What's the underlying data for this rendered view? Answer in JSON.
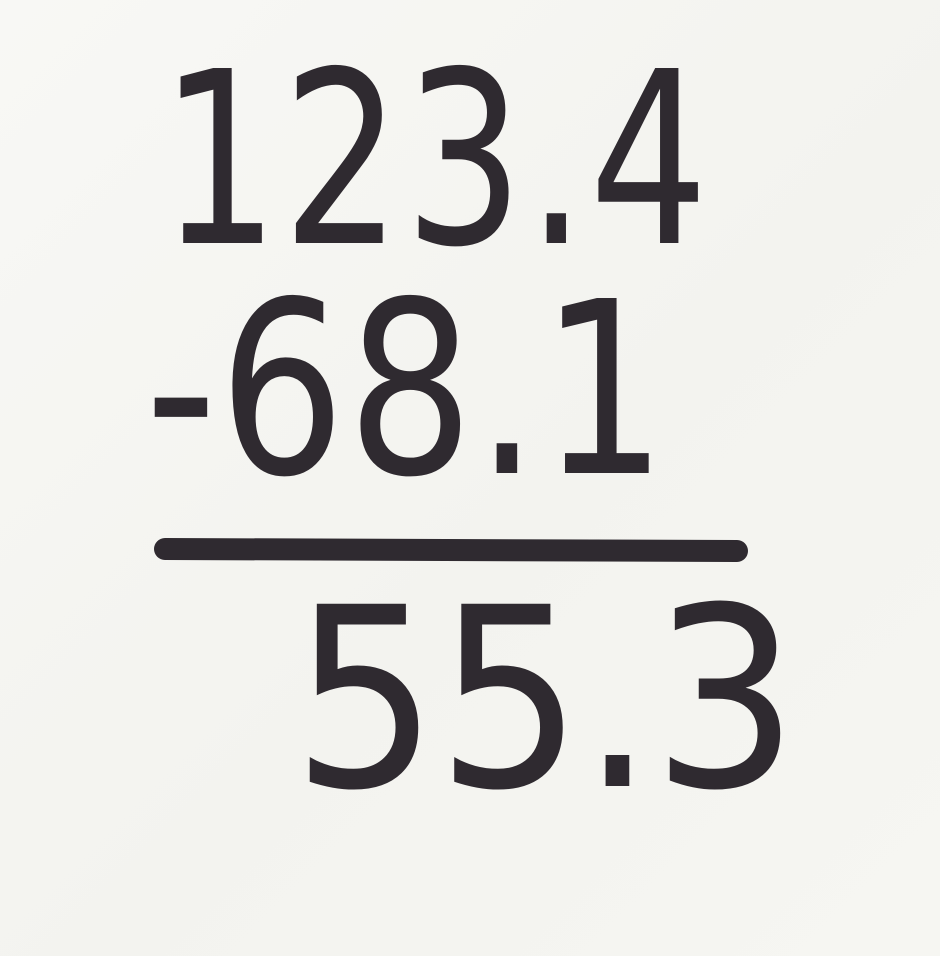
{
  "worksheet": {
    "minuend": "123.4",
    "subtrahend": "-68.1",
    "difference": "55.3"
  },
  "colors": {
    "ink": "#2f2a30",
    "paper": "#f6f6f3"
  }
}
